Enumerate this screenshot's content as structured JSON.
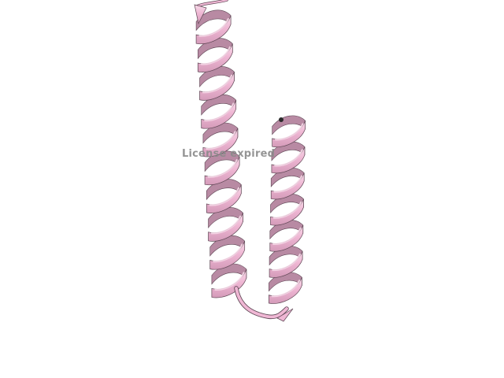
{
  "viewer": {
    "background_color": "#ffffff",
    "watermark_text": "License expired",
    "watermark_color": "#8a8a8a",
    "structure": {
      "representation": "cartoon",
      "description_icon": "protein-helix-icon",
      "color_front": "#efb7d4",
      "color_highlight": "#f8dcea",
      "color_back": "#b88aa3",
      "color_edge": "#5e4654",
      "terminus_color": "#2a2a2a"
    }
  }
}
